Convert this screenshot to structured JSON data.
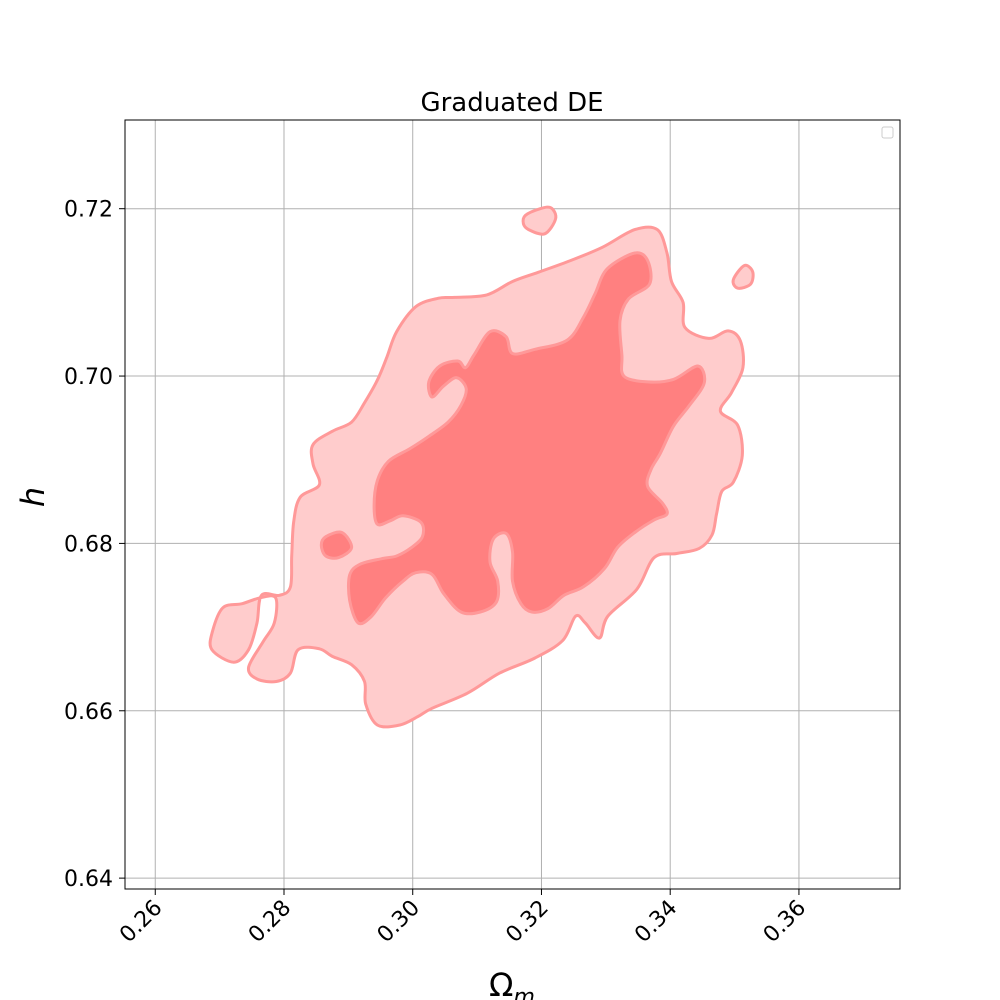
{
  "chart_data": {
    "type": "contour",
    "title": "Graduated DE",
    "xlabel": "Ω",
    "xlabel_sub": "m",
    "ylabel": "h",
    "xlim": [
      0.2553,
      0.3757
    ],
    "ylim": [
      0.6387,
      0.7306
    ],
    "x_ticks": [
      0.26,
      0.28,
      0.3,
      0.32,
      0.34,
      0.36
    ],
    "x_tick_labels": [
      "0.26",
      "0.28",
      "0.30",
      "0.32",
      "0.34",
      "0.36"
    ],
    "y_ticks": [
      0.64,
      0.66,
      0.68,
      0.7,
      0.72
    ],
    "y_tick_labels": [
      "0.64",
      "0.66",
      "0.68",
      "0.70",
      "0.72"
    ],
    "grid": true,
    "legend": "top-right, empty",
    "colors": {
      "inner_fill": "#ff8080",
      "outer_fill": "#ffcccc",
      "edge": "#ff9999",
      "grid": "#b0b0b0"
    },
    "regions": [
      {
        "level": "outer",
        "polygons": [
          [
            [
              0.3065,
              0.7094
            ],
            [
              0.3115,
              0.7097
            ],
            [
              0.3155,
              0.7113
            ],
            [
              0.3195,
              0.7124
            ],
            [
              0.3245,
              0.7138
            ],
            [
              0.3295,
              0.7154
            ],
            [
              0.3345,
              0.7175
            ],
            [
              0.338,
              0.7175
            ],
            [
              0.3395,
              0.7147
            ],
            [
              0.3402,
              0.7113
            ],
            [
              0.342,
              0.7088
            ],
            [
              0.3423,
              0.7058
            ],
            [
              0.346,
              0.7045
            ],
            [
              0.349,
              0.7054
            ],
            [
              0.3509,
              0.7042
            ],
            [
              0.3513,
              0.701
            ],
            [
              0.3495,
              0.698
            ],
            [
              0.3478,
              0.6958
            ],
            [
              0.3505,
              0.6941
            ],
            [
              0.3512,
              0.6905
            ],
            [
              0.3498,
              0.6873
            ],
            [
              0.348,
              0.6862
            ],
            [
              0.3472,
              0.6835
            ],
            [
              0.3465,
              0.681
            ],
            [
              0.3445,
              0.6794
            ],
            [
              0.341,
              0.6788
            ],
            [
              0.3375,
              0.6783
            ],
            [
              0.3348,
              0.6745
            ],
            [
              0.3303,
              0.6713
            ],
            [
              0.329,
              0.6687
            ],
            [
              0.3268,
              0.6705
            ],
            [
              0.3253,
              0.6713
            ],
            [
              0.3233,
              0.6684
            ],
            [
              0.319,
              0.6663
            ],
            [
              0.3135,
              0.6645
            ],
            [
              0.3085,
              0.6621
            ],
            [
              0.303,
              0.6603
            ],
            [
              0.3008,
              0.6593
            ],
            [
              0.298,
              0.6583
            ],
            [
              0.2945,
              0.6583
            ],
            [
              0.2927,
              0.6608
            ],
            [
              0.2925,
              0.6635
            ],
            [
              0.2905,
              0.6655
            ],
            [
              0.2875,
              0.6665
            ],
            [
              0.2855,
              0.6674
            ],
            [
              0.2822,
              0.6673
            ],
            [
              0.281,
              0.6645
            ],
            [
              0.2788,
              0.6635
            ],
            [
              0.2758,
              0.6638
            ],
            [
              0.2745,
              0.6652
            ],
            [
              0.2768,
              0.6683
            ],
            [
              0.2785,
              0.6705
            ],
            [
              0.2787,
              0.6735
            ],
            [
              0.2763,
              0.6735
            ],
            [
              0.2735,
              0.6728
            ],
            [
              0.2705,
              0.6723
            ],
            [
              0.2689,
              0.6695
            ],
            [
              0.2688,
              0.6673
            ],
            [
              0.2722,
              0.6658
            ],
            [
              0.2745,
              0.6673
            ],
            [
              0.2758,
              0.6705
            ],
            [
              0.2765,
              0.6738
            ],
            [
              0.2793,
              0.6738
            ],
            [
              0.281,
              0.6748
            ],
            [
              0.2812,
              0.6785
            ],
            [
              0.2815,
              0.6825
            ],
            [
              0.2825,
              0.6855
            ],
            [
              0.2855,
              0.687
            ],
            [
              0.2845,
              0.6895
            ],
            [
              0.2845,
              0.6918
            ],
            [
              0.2875,
              0.6934
            ],
            [
              0.2905,
              0.6945
            ],
            [
              0.2925,
              0.6968
            ],
            [
              0.2945,
              0.6995
            ],
            [
              0.296,
              0.7023
            ],
            [
              0.2975,
              0.7053
            ],
            [
              0.3005,
              0.7083
            ],
            [
              0.304,
              0.7093
            ]
          ]
        ]
      },
      {
        "level": "outer",
        "polygons": [
          [
            [
              0.3175,
              0.7192
            ],
            [
              0.3198,
              0.72
            ],
            [
              0.3215,
              0.7201
            ],
            [
              0.3222,
              0.7188
            ],
            [
              0.3205,
              0.717
            ],
            [
              0.318,
              0.7175
            ],
            [
              0.3172,
              0.7182
            ]
          ]
        ]
      },
      {
        "level": "outer",
        "polygons": [
          [
            [
              0.3498,
              0.7115
            ],
            [
              0.3515,
              0.7132
            ],
            [
              0.3528,
              0.7125
            ],
            [
              0.3525,
              0.711
            ],
            [
              0.3505,
              0.7105
            ]
          ]
        ]
      },
      {
        "level": "inner",
        "polygons": [
          [
            [
              0.3095,
              0.7025
            ],
            [
              0.312,
              0.7053
            ],
            [
              0.3145,
              0.7047
            ],
            [
              0.3155,
              0.7027
            ],
            [
              0.319,
              0.7032
            ],
            [
              0.324,
              0.7043
            ],
            [
              0.3265,
              0.707
            ],
            [
              0.3283,
              0.7098
            ],
            [
              0.3302,
              0.7128
            ],
            [
              0.3345,
              0.7147
            ],
            [
              0.3365,
              0.7138
            ],
            [
              0.3368,
              0.711
            ],
            [
              0.3335,
              0.7092
            ],
            [
              0.3322,
              0.7066
            ],
            [
              0.3325,
              0.7025
            ],
            [
              0.3328,
              0.7
            ],
            [
              0.3365,
              0.6993
            ],
            [
              0.3405,
              0.6996
            ],
            [
              0.3443,
              0.7012
            ],
            [
              0.3453,
              0.6992
            ],
            [
              0.343,
              0.6965
            ],
            [
              0.3405,
              0.694
            ],
            [
              0.3385,
              0.6908
            ],
            [
              0.337,
              0.6888
            ],
            [
              0.3365,
              0.6868
            ],
            [
              0.3388,
              0.6848
            ],
            [
              0.3395,
              0.6835
            ],
            [
              0.3375,
              0.6828
            ],
            [
              0.3345,
              0.6813
            ],
            [
              0.3318,
              0.6795
            ],
            [
              0.3298,
              0.677
            ],
            [
              0.3265,
              0.6748
            ],
            [
              0.3235,
              0.6738
            ],
            [
              0.321,
              0.6722
            ],
            [
              0.3185,
              0.6718
            ],
            [
              0.3168,
              0.6728
            ],
            [
              0.3155,
              0.6755
            ],
            [
              0.3155,
              0.679
            ],
            [
              0.3145,
              0.6812
            ],
            [
              0.3125,
              0.6805
            ],
            [
              0.312,
              0.6778
            ],
            [
              0.3132,
              0.6755
            ],
            [
              0.313,
              0.673
            ],
            [
              0.3105,
              0.6718
            ],
            [
              0.3075,
              0.6718
            ],
            [
              0.3048,
              0.674
            ],
            [
              0.303,
              0.6763
            ],
            [
              0.3005,
              0.6765
            ],
            [
              0.2985,
              0.6755
            ],
            [
              0.2958,
              0.6735
            ],
            [
              0.2935,
              0.6712
            ],
            [
              0.2915,
              0.6705
            ],
            [
              0.2902,
              0.6732
            ],
            [
              0.2902,
              0.6762
            ],
            [
              0.2918,
              0.6775
            ],
            [
              0.2953,
              0.6782
            ],
            [
              0.2975,
              0.6785
            ],
            [
              0.2998,
              0.6795
            ],
            [
              0.3015,
              0.6808
            ],
            [
              0.3013,
              0.6825
            ],
            [
              0.2985,
              0.6833
            ],
            [
              0.2965,
              0.6827
            ],
            [
              0.2945,
              0.6823
            ],
            [
              0.294,
              0.6845
            ],
            [
              0.2945,
              0.6875
            ],
            [
              0.2962,
              0.6898
            ],
            [
              0.2995,
              0.6913
            ],
            [
              0.3025,
              0.6928
            ],
            [
              0.3055,
              0.6945
            ],
            [
              0.3075,
              0.6965
            ],
            [
              0.3083,
              0.6985
            ],
            [
              0.3068,
              0.6998
            ],
            [
              0.3048,
              0.6988
            ],
            [
              0.303,
              0.6975
            ],
            [
              0.3025,
              0.6993
            ],
            [
              0.3042,
              0.7012
            ],
            [
              0.307,
              0.7018
            ],
            [
              0.3082,
              0.701
            ]
          ]
        ]
      },
      {
        "level": "inner",
        "polygons": [
          [
            [
              0.2865,
              0.6808
            ],
            [
              0.289,
              0.6813
            ],
            [
              0.2905,
              0.6795
            ],
            [
              0.2885,
              0.6783
            ],
            [
              0.2865,
              0.6785
            ],
            [
              0.2858,
              0.6798
            ]
          ]
        ]
      }
    ]
  }
}
